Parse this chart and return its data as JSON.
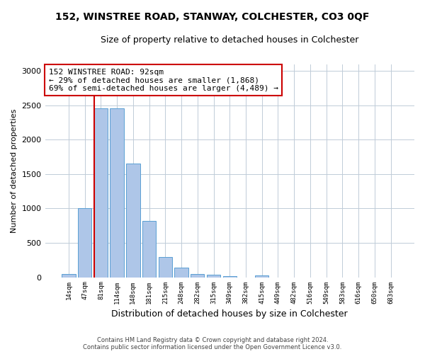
{
  "title": "152, WINSTREE ROAD, STANWAY, COLCHESTER, CO3 0QF",
  "subtitle": "Size of property relative to detached houses in Colchester",
  "xlabel": "Distribution of detached houses by size in Colchester",
  "ylabel": "Number of detached properties",
  "bar_labels": [
    "14sqm",
    "47sqm",
    "81sqm",
    "114sqm",
    "148sqm",
    "181sqm",
    "215sqm",
    "248sqm",
    "282sqm",
    "315sqm",
    "349sqm",
    "382sqm",
    "415sqm",
    "449sqm",
    "482sqm",
    "516sqm",
    "549sqm",
    "583sqm",
    "616sqm",
    "650sqm",
    "683sqm"
  ],
  "bar_values": [
    50,
    1000,
    2460,
    2460,
    1650,
    820,
    295,
    140,
    50,
    35,
    20,
    0,
    30,
    0,
    0,
    0,
    0,
    0,
    0,
    0,
    0
  ],
  "bar_color": "#aec6e8",
  "bar_edge_color": "#5a9fd4",
  "property_line_x": 1.575,
  "property_line_color": "#cc0000",
  "annotation_text": "152 WINSTREE ROAD: 92sqm\n← 29% of detached houses are smaller (1,868)\n69% of semi-detached houses are larger (4,489) →",
  "annotation_box_color": "#ffffff",
  "annotation_box_edge_color": "#cc0000",
  "ylim": [
    0,
    3100
  ],
  "yticks": [
    0,
    500,
    1000,
    1500,
    2000,
    2500,
    3000
  ],
  "background_color": "#ffffff",
  "grid_color": "#c0ccd8",
  "footer_line1": "Contains HM Land Registry data © Crown copyright and database right 2024.",
  "footer_line2": "Contains public sector information licensed under the Open Government Licence v3.0."
}
